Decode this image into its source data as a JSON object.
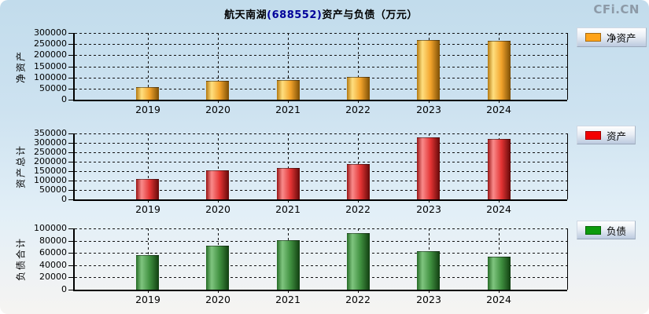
{
  "watermark": "CFi.CN",
  "title": {
    "prefix": "航天南湖",
    "code": "(688552)",
    "suffix": "资产与负债（万元）"
  },
  "years": [
    "2019",
    "2020",
    "2021",
    "2022",
    "2023",
    "2024"
  ],
  "chart_data": [
    {
      "type": "bar",
      "id": "net-assets",
      "ylabel": "净资产",
      "legend_label": "净资产",
      "categories": [
        "2019",
        "2020",
        "2021",
        "2022",
        "2023",
        "2024"
      ],
      "values": [
        52000,
        82000,
        86000,
        99000,
        266000,
        262000
      ],
      "ylim": [
        0,
        300000
      ],
      "y_ticks": [
        300000,
        250000,
        200000,
        150000,
        100000,
        50000,
        0
      ],
      "grid": "dashed",
      "legend_position": "right-top",
      "legend_color": "#FFA318",
      "bar_gradient": [
        "#b5790f",
        "#ffdf7f",
        "#f2a32b",
        "#7d4f05"
      ]
    },
    {
      "type": "bar",
      "id": "total-assets",
      "ylabel": "资产总计",
      "legend_label": "资产",
      "categories": [
        "2019",
        "2020",
        "2021",
        "2022",
        "2023",
        "2024"
      ],
      "values": [
        104000,
        151000,
        163000,
        184000,
        326000,
        315000
      ],
      "ylim": [
        0,
        350000
      ],
      "y_ticks": [
        350000,
        300000,
        250000,
        200000,
        150000,
        100000,
        50000,
        0
      ],
      "grid": "dashed",
      "legend_position": "right-top",
      "legend_color": "#F20000",
      "bar_gradient": [
        "#9a1414",
        "#f98b8b",
        "#e33333",
        "#640909"
      ]
    },
    {
      "type": "bar",
      "id": "total-liabilities",
      "ylabel": "负债合计",
      "legend_label": "负债",
      "categories": [
        "2019",
        "2020",
        "2021",
        "2022",
        "2023",
        "2024"
      ],
      "values": [
        55000,
        70500,
        80000,
        91000,
        61000,
        53000
      ],
      "ylim": [
        0,
        100000
      ],
      "y_ticks": [
        100000,
        80000,
        60000,
        40000,
        20000,
        0
      ],
      "grid": "dashed",
      "legend_position": "right-top",
      "legend_color": "#0D9B0D",
      "bar_gradient": [
        "#266c26",
        "#7fc57f",
        "#3f8f3f",
        "#113f11"
      ]
    }
  ]
}
